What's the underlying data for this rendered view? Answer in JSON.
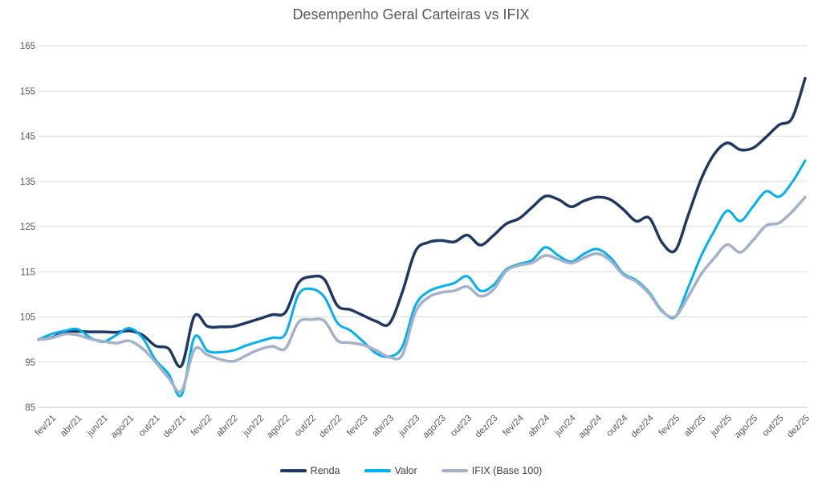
{
  "title": "Desempenho Geral Carteiras vs IFIX",
  "colors": {
    "renda": "#1F3864",
    "valor": "#00B0F0",
    "ifix": "#A4B1C9",
    "gridline": "#D9D9D9",
    "axis_line": "#C6C6C6",
    "tick_text": "#595959",
    "title_text": "#595959",
    "legend_text": "#404040",
    "background": "#FFFFFF"
  },
  "legend": {
    "items": [
      "Renda",
      "Valor",
      "IFIX (Base 100)"
    ]
  },
  "chart_data": {
    "type": "line",
    "title": "Desempenho Geral Carteiras vs IFIX",
    "xlabel": "",
    "ylabel": "",
    "ylim": [
      85,
      165
    ],
    "y_ticks": [
      85,
      95,
      105,
      115,
      125,
      135,
      145,
      155,
      165
    ],
    "grid": "horizontal",
    "legend_position": "bottom",
    "x_tick_start": 1,
    "x_tick_every": 2,
    "categories": [
      "jan/21",
      "fev/21",
      "mar/21",
      "abr/21",
      "mai/21",
      "jun/21",
      "jul/21",
      "ago/21",
      "set/21",
      "out/21",
      "nov/21",
      "dez/21",
      "jan/22",
      "fev/22",
      "mar/22",
      "abr/22",
      "mai/22",
      "jun/22",
      "jul/22",
      "ago/22",
      "set/22",
      "out/22",
      "nov/22",
      "dez/22",
      "jan/23",
      "fev/23",
      "mar/23",
      "abr/23",
      "mai/23",
      "jun/23",
      "jul/23",
      "ago/23",
      "set/23",
      "out/23",
      "nov/23",
      "dez/23",
      "jan/24",
      "fev/24",
      "mar/24",
      "abr/24",
      "mai/24",
      "jun/24",
      "jul/24",
      "ago/24",
      "set/24",
      "out/24",
      "nov/24",
      "dez/24",
      "jan/25",
      "fev/25",
      "mar/25",
      "abr/25",
      "mai/25",
      "jun/25",
      "jul/25",
      "ago/25",
      "set/25",
      "out/25",
      "nov/25",
      "dez/25"
    ],
    "x_tick_labels": [
      "fev/21",
      "abr/21",
      "jun/21",
      "ago/21",
      "out/21",
      "dez/21",
      "fev/22",
      "abr/22",
      "jun/22",
      "ago/22",
      "out/22",
      "dez/22",
      "fev/23",
      "abr/23",
      "jun/23",
      "ago/23",
      "out/23",
      "dez/23",
      "fev/24",
      "abr/24",
      "jun/24",
      "ago/24",
      "out/24",
      "dez/24",
      "fev/25",
      "abr/25",
      "jun/25",
      "ago/25",
      "out/25",
      "dez/25"
    ],
    "series": [
      {
        "name": "Renda",
        "color": "#1F3864",
        "values": [
          100.0,
          100.4,
          101.7,
          101.8,
          101.7,
          101.7,
          101.6,
          101.9,
          101.0,
          98.6,
          98.0,
          94.2,
          105.2,
          102.9,
          102.8,
          102.9,
          103.7,
          104.6,
          105.5,
          106.0,
          112.5,
          113.9,
          113.3,
          107.5,
          106.6,
          105.3,
          104.0,
          103.5,
          110.5,
          119.5,
          121.5,
          121.9,
          121.6,
          123.1,
          120.9,
          123.0,
          125.6,
          126.8,
          129.3,
          131.7,
          131.0,
          129.4,
          130.7,
          131.5,
          131.0,
          128.8,
          126.2,
          126.9,
          121.4,
          119.7,
          127.5,
          135.5,
          141.0,
          143.5,
          142.0,
          142.4,
          144.8,
          147.5,
          149.0,
          157.8
        ]
      },
      {
        "name": "Valor",
        "color": "#00B0F0",
        "values": [
          100.0,
          101.2,
          101.9,
          102.3,
          100.4,
          99.5,
          101.0,
          102.5,
          100.4,
          95.5,
          92.4,
          87.7,
          100.5,
          97.5,
          97.2,
          97.6,
          98.7,
          99.6,
          100.4,
          101.2,
          109.9,
          111.2,
          109.4,
          103.7,
          102.0,
          99.5,
          96.9,
          96.2,
          98.4,
          107.5,
          110.6,
          111.7,
          112.5,
          114.0,
          110.8,
          112.0,
          115.5,
          116.7,
          117.6,
          120.4,
          118.6,
          117.2,
          119.0,
          120.0,
          118.2,
          114.6,
          113.1,
          110.4,
          106.4,
          105.0,
          111.5,
          118.5,
          124.0,
          128.5,
          126.2,
          129.5,
          132.8,
          131.6,
          134.8,
          139.6
        ]
      },
      {
        "name": "IFIX (Base 100)",
        "color": "#A4B1C9",
        "values": [
          100.0,
          100.3,
          101.2,
          101.0,
          100.1,
          99.6,
          99.2,
          99.7,
          98.0,
          95.0,
          91.5,
          88.6,
          97.8,
          96.6,
          95.6,
          95.2,
          96.5,
          97.8,
          98.5,
          98.0,
          103.8,
          104.4,
          104.1,
          99.8,
          99.3,
          98.8,
          97.6,
          96.1,
          96.6,
          106.0,
          109.3,
          110.4,
          110.8,
          111.7,
          109.6,
          111.0,
          115.2,
          116.4,
          117.0,
          118.6,
          117.8,
          116.9,
          118.1,
          119.0,
          117.5,
          114.3,
          112.8,
          110.1,
          106.2,
          105.1,
          109.5,
          114.5,
          118.0,
          121.0,
          119.3,
          122.0,
          125.2,
          125.8,
          128.3,
          131.5
        ]
      }
    ]
  }
}
